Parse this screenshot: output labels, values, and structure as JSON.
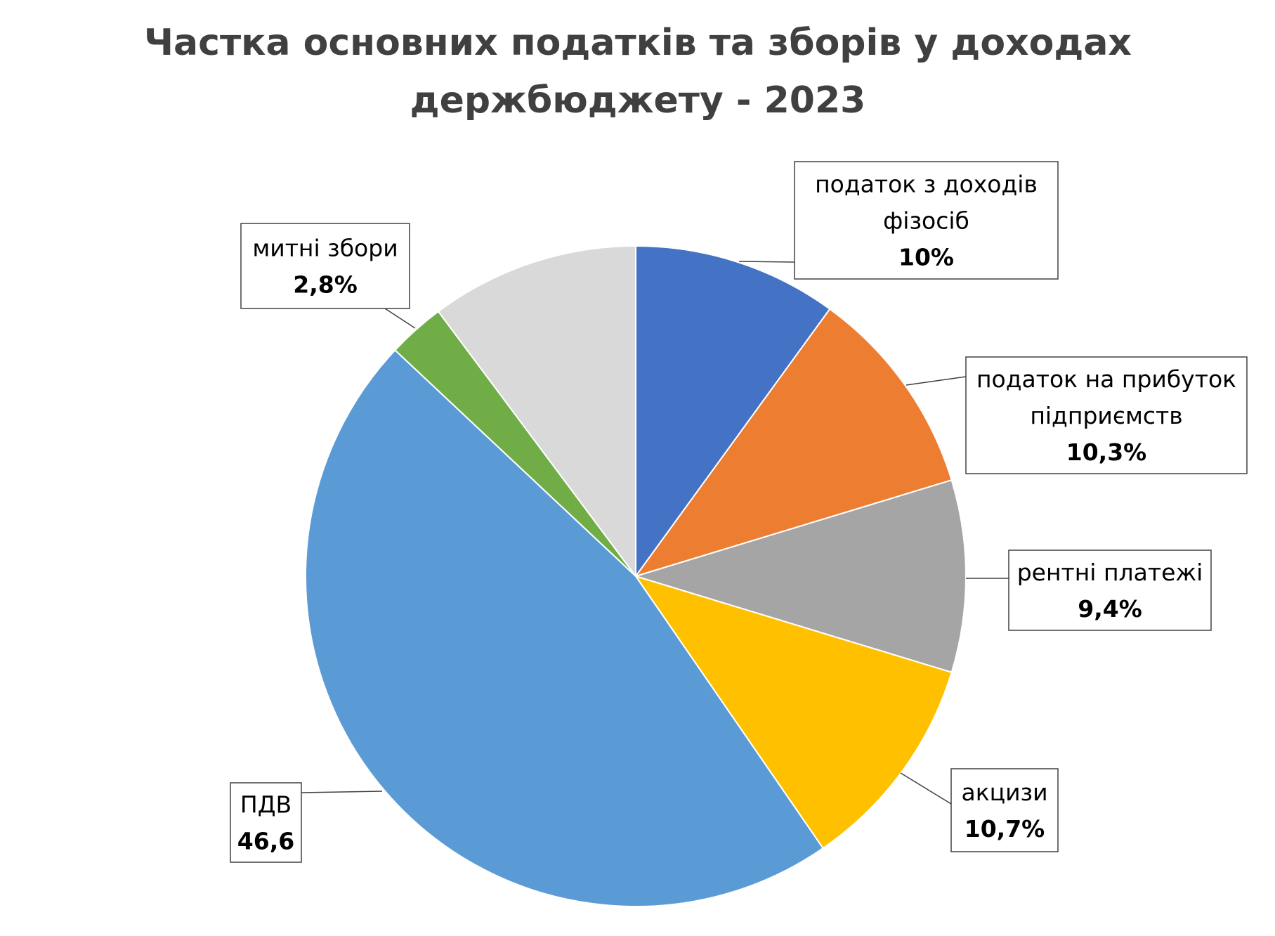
{
  "chart_data": {
    "type": "pie",
    "title": "Частка основних податків та зборів у доходах держбюджету - 2023",
    "title_lines": [
      "Частка основних податків та зборів у доходах",
      "держбюджету - 2023"
    ],
    "start_angle_deg": 0,
    "direction": "clockwise",
    "slices": [
      {
        "id": "pdfo",
        "name_lines": [
          "податок з доходів",
          "фізосіб"
        ],
        "label_value": "10%",
        "value": 10,
        "color": "#4472C4"
      },
      {
        "id": "profit",
        "name_lines": [
          "податок на прибуток",
          "підприємств"
        ],
        "label_value": "10,3%",
        "value": 10.3,
        "color": "#ED7D31"
      },
      {
        "id": "rent",
        "name_lines": [
          "рентні платежі"
        ],
        "label_value": "9,4%",
        "value": 9.4,
        "color": "#A5A5A5"
      },
      {
        "id": "excise",
        "name_lines": [
          "акцизи"
        ],
        "label_value": "10,7%",
        "value": 10.7,
        "color": "#FFC000"
      },
      {
        "id": "vat",
        "name_lines": [
          "ПДВ"
        ],
        "label_value": "46,6",
        "value": 46.6,
        "color": "#5B9BD5"
      },
      {
        "id": "customs",
        "name_lines": [
          "митні збори"
        ],
        "label_value": "2,8%",
        "value": 2.8,
        "color": "#70AD47"
      },
      {
        "id": "other",
        "name_lines": [],
        "label_value": "",
        "value": 10.2,
        "color": "#D9D9D9"
      }
    ]
  }
}
